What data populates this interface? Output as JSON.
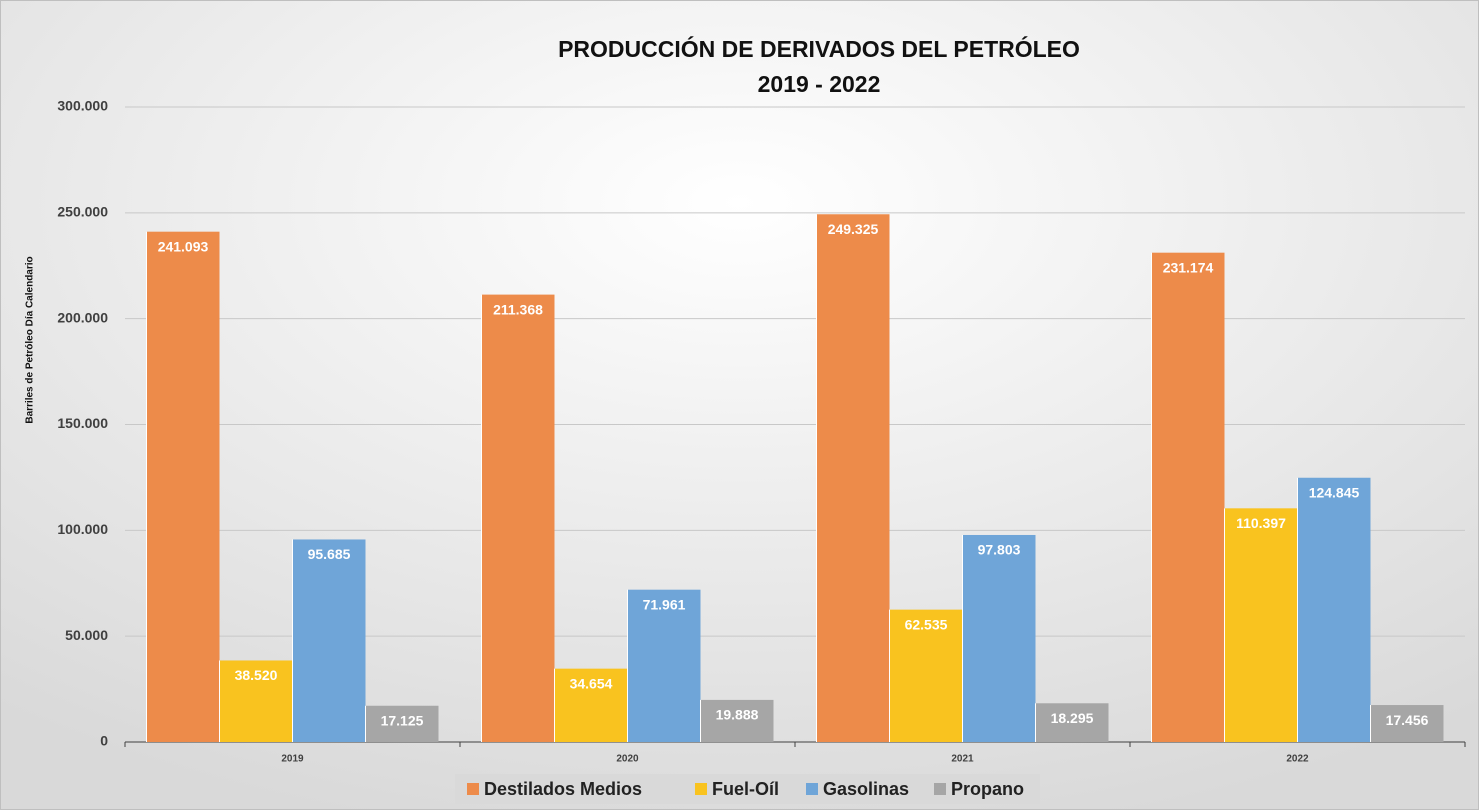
{
  "chart_data": {
    "type": "bar",
    "title": "PRODUCCIÓN DE DERIVADOS DEL PETRÓLEO",
    "subtitle": "2019 - 2022",
    "y_label": "Barriles de Petróleo Día Calendario",
    "categories": [
      "2019",
      "2020",
      "2021",
      "2022"
    ],
    "series": [
      {
        "name": "Destilados Medios",
        "color": "#ED8B4A",
        "values": [
          241093,
          211368,
          249325,
          231174
        ],
        "value_labels": [
          "241.093",
          "211.368",
          "249.325",
          "231.174"
        ]
      },
      {
        "name": "Fuel-Oíl",
        "color": "#F9C31F",
        "values": [
          38520,
          34654,
          62535,
          110397
        ],
        "value_labels": [
          "38.520",
          "34.654",
          "62.535",
          "110.397"
        ]
      },
      {
        "name": "Gasolinas",
        "color": "#6FA5D8",
        "values": [
          95685,
          71961,
          97803,
          124845
        ],
        "value_labels": [
          "95.685",
          "71.961",
          "97.803",
          "124.845"
        ]
      },
      {
        "name": "Propano",
        "color": "#A6A6A6",
        "values": [
          17125,
          19888,
          18295,
          17456
        ],
        "value_labels": [
          "17.125",
          "19.888",
          "18.295",
          "17.456"
        ]
      }
    ],
    "ylim": [
      0,
      300000
    ],
    "yticks": [
      0,
      {
        "value": 50000,
        "label": "50.000"
      },
      {
        "value": 100000,
        "label": "100.000"
      },
      {
        "value": 150000,
        "label": "150.000"
      },
      {
        "value": 200000,
        "label": "200.000"
      },
      {
        "value": 250000,
        "label": "250.000"
      },
      {
        "value": 300000,
        "label": "300.000"
      }
    ],
    "grid": true,
    "legend": "bottom"
  }
}
